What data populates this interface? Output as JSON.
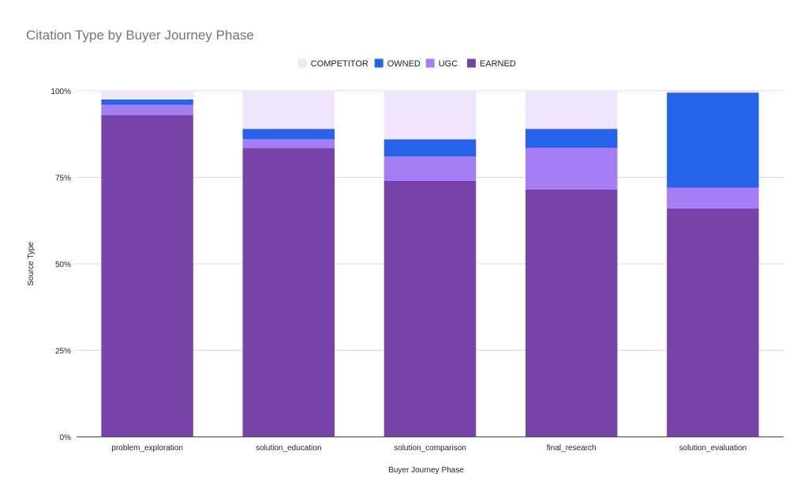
{
  "chart_data": {
    "type": "bar",
    "stacked": true,
    "percent_stacked": true,
    "title": "Citation Type by Buyer Journey Phase",
    "xlabel": "Buyer Journey Phase",
    "ylabel": "Source Type",
    "ylim": [
      0,
      100
    ],
    "yticks": [
      "0%",
      "25%",
      "50%",
      "75%",
      "100%"
    ],
    "grid": true,
    "legend_position": "top",
    "categories": [
      "problem_exploration",
      "solution_education",
      "solution_comparison",
      "final_research",
      "solution_evaluation"
    ],
    "series": [
      {
        "name": "EARNED",
        "color": "#7843a8",
        "values": [
          93.0,
          83.5,
          74.0,
          71.5,
          66.0
        ]
      },
      {
        "name": "UGC",
        "color": "#a47ef5",
        "values": [
          3.0,
          2.5,
          7.0,
          12.0,
          6.0
        ]
      },
      {
        "name": "OWNED",
        "color": "#2563eb",
        "values": [
          1.5,
          3.0,
          5.0,
          5.5,
          27.5
        ]
      },
      {
        "name": "COMPETITOR",
        "color": "#efe5fd",
        "values": [
          2.5,
          11.0,
          14.0,
          11.0,
          0.5
        ]
      }
    ],
    "legend_order": [
      "COMPETITOR",
      "OWNED",
      "UGC",
      "EARNED"
    ]
  }
}
